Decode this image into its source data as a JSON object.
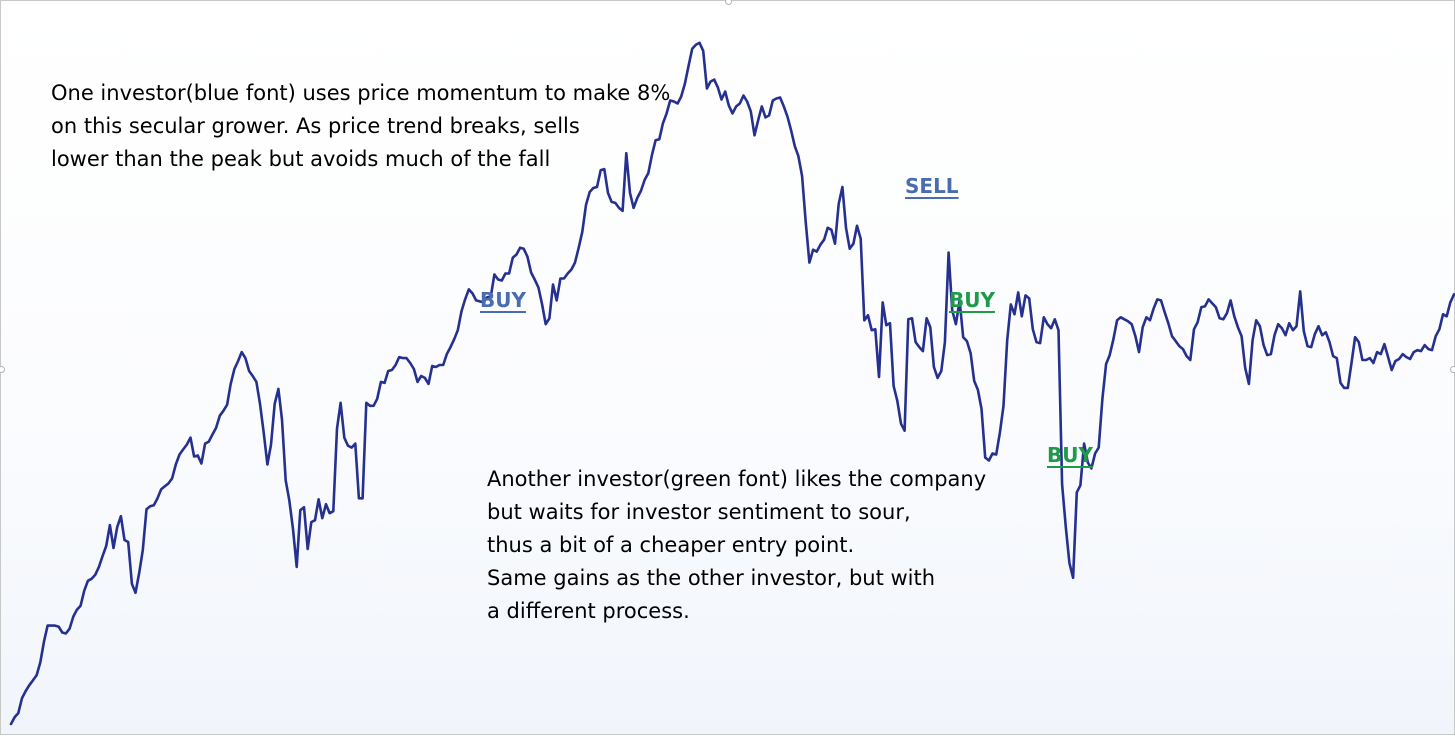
{
  "chart_data": {
    "type": "line",
    "title": "",
    "xlabel": "",
    "ylabel": "",
    "grid": false,
    "legend": "none",
    "line_color": "#25308f",
    "x_range": [
      0,
      362
    ],
    "y_range": [
      0,
      726
    ],
    "series": [
      {
        "values": [
          5,
          12,
          16,
          31,
          38,
          44,
          49,
          54,
          67,
          88,
          104,
          104,
          104,
          103,
          97,
          96,
          101,
          113,
          120,
          124,
          139,
          149,
          151,
          155,
          163,
          174,
          184,
          205,
          182,
          203,
          214,
          190,
          188,
          146,
          137,
          157,
          180,
          221,
          224,
          225,
          232,
          241,
          244,
          247,
          252,
          266,
          276,
          281,
          286,
          293,
          274,
          275,
          267,
          287,
          289,
          296,
          303,
          315,
          320,
          326,
          347,
          362,
          370,
          379,
          373,
          360,
          355,
          349,
          327,
          298,
          266,
          286,
          327,
          342,
          311,
          250,
          230,
          201,
          163,
          220,
          223,
          181,
          208,
          210,
          231,
          212,
          226,
          217,
          219,
          302,
          328,
          293,
          285,
          283,
          287,
          232,
          232,
          328,
          325,
          325,
          332,
          349,
          348,
          360,
          361,
          366,
          374,
          373,
          373,
          368,
          362,
          349,
          355,
          353,
          347,
          365,
          364,
          366,
          366,
          377,
          384,
          392,
          401,
          420,
          432,
          442,
          438,
          431,
          430,
          429,
          434,
          435,
          457,
          452,
          451,
          458,
          458,
          474,
          477,
          484,
          483,
          475,
          459,
          452,
          444,
          427,
          407,
          413,
          447,
          431,
          453,
          453,
          458,
          462,
          469,
          484,
          500,
          527,
          540,
          544,
          545,
          562,
          563,
          539,
          530,
          529,
          524,
          521,
          579,
          539,
          524,
          534,
          541,
          552,
          559,
          577,
          592,
          593,
          609,
          619,
          632,
          631,
          629,
          636,
          649,
          667,
          684,
          688,
          690,
          682,
          644,
          651,
          653,
          645,
          633,
          641,
          627,
          619,
          626,
          629,
          637,
          631,
          621,
          597,
          612,
          626,
          615,
          617,
          632,
          634,
          635,
          626,
          616,
          602,
          586,
          576,
          556,
          510,
          469,
          482,
          480,
          487,
          492,
          504,
          502,
          488,
          528,
          545,
          504,
          483,
          488,
          506,
          493,
          411,
          416,
          401,
          402,
          354,
          429,
          406,
          408,
          345,
          330,
          307,
          300,
          412,
          413,
          389,
          384,
          380,
          413,
          404,
          364,
          353,
          360,
          389,
          479,
          421,
          407,
          431,
          394,
          390,
          378,
          350,
          341,
          322,
          273,
          270,
          277,
          276,
          298,
          325,
          391,
          427,
          417,
          439,
          415,
          436,
          433,
          402,
          389,
          388,
          414,
          407,
          403,
          412,
          401,
          246,
          203,
          167,
          152,
          238,
          245,
          287,
          268,
          262,
          277,
          283,
          332,
          367,
          376,
          392,
          411,
          414,
          412,
          410,
          407,
          395,
          379,
          404,
          414,
          411,
          423,
          432,
          431,
          419,
          408,
          395,
          390,
          385,
          382,
          375,
          371,
          402,
          409,
          424,
          425,
          432,
          428,
          424,
          413,
          412,
          418,
          431,
          415,
          404,
          395,
          363,
          347,
          391,
          411,
          405,
          386,
          376,
          377,
          396,
          407,
          403,
          396,
          408,
          401,
          405,
          440,
          400,
          385,
          384,
          397,
          405,
          396,
          399,
          389,
          375,
          373,
          348,
          343,
          343,
          368,
          394,
          389,
          371,
          371,
          373,
          368,
          379,
          377,
          387,
          374,
          361,
          370,
          372,
          377,
          374,
          372,
          379,
          381,
          380,
          386,
          382,
          381,
          395,
          402,
          417,
          415,
          429,
          437
        ]
      }
    ],
    "annotations": [
      {
        "id": "note-momentum",
        "color": "#000000",
        "lines": [
          "One investor(blue font) uses price momentum to make 8%",
          "on this secular grower.  As price trend breaks, sells",
          "lower than the peak but avoids much of the fall"
        ]
      },
      {
        "id": "note-sentiment",
        "color": "#000000",
        "lines": [
          "Another investor(green font) likes the company",
          "but waits for investor sentiment to sour,",
          "thus a bit of a cheaper entry point.",
          "Same gains as the other investor, but with",
          "a different process."
        ]
      }
    ],
    "markers": [
      {
        "id": "blue-buy",
        "label": "BUY",
        "color": "#4a6db0",
        "at_x": 131
      },
      {
        "id": "blue-sell",
        "label": "SELL",
        "color": "#4a6db0",
        "at_x": 238
      },
      {
        "id": "green-buy-1",
        "label": "BUY",
        "color": "#1f9a4a",
        "at_x": 250
      },
      {
        "id": "green-buy-2",
        "label": "BUY",
        "color": "#1f9a4a",
        "at_x": 275
      }
    ]
  }
}
